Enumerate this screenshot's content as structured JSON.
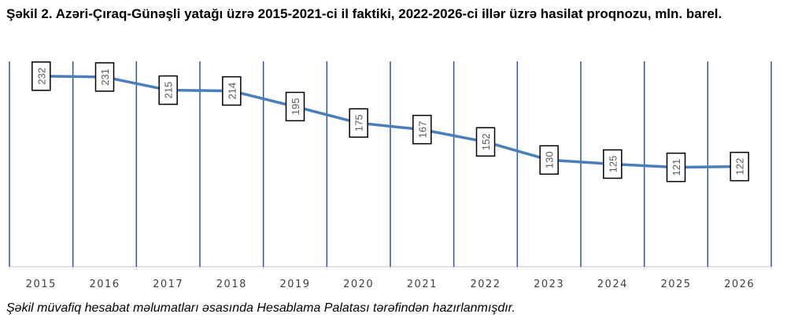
{
  "title": "Şəkil 2. Azəri-Çıraq-Günəşli yatağı üzrə 2015-2021-ci il faktiki, 2022-2026-ci illər üzrə hasilat proqnozu, mln. barel.",
  "note": "Şəkil müvafiq hesabat məlumatları əsasında Hesablama Palatası tərəfindən hazırlanmışdır.",
  "chart_data": {
    "type": "line",
    "categories": [
      "2015",
      "2016",
      "2017",
      "2018",
      "2019",
      "2020",
      "2021",
      "2022",
      "2023",
      "2024",
      "2025",
      "2026"
    ],
    "values": [
      232,
      231,
      215,
      214,
      195,
      175,
      167,
      152,
      130,
      125,
      121,
      122
    ],
    "ylim": [
      0,
      250
    ],
    "grid": "vertical",
    "data_labels": true,
    "colors": {
      "line": "#4a7ebb",
      "grid": "#2f5597",
      "axis": "#d9d9d9"
    }
  }
}
